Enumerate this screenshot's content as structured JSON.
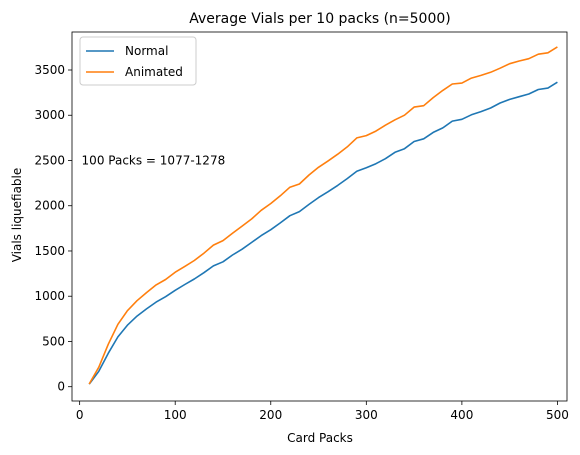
{
  "chart_data": {
    "type": "line",
    "title": "Average Vials per 10 packs (n=5000)",
    "xlabel": "Card Packs",
    "ylabel": "Vials liquefiable",
    "xlim": [
      -8,
      510
    ],
    "ylim": [
      -158,
      3920
    ],
    "xticks": [
      0,
      100,
      200,
      300,
      400,
      500
    ],
    "yticks": [
      0,
      500,
      1000,
      1500,
      2000,
      2500,
      3000,
      3500
    ],
    "grid": false,
    "legend_position": "top-left",
    "annotation": {
      "text": "100 Packs = 1077-1278",
      "x": 2,
      "y": 2500
    },
    "x": [
      10,
      20,
      30,
      40,
      50,
      60,
      70,
      80,
      90,
      100,
      110,
      120,
      130,
      140,
      150,
      160,
      170,
      180,
      190,
      200,
      210,
      220,
      230,
      240,
      250,
      260,
      270,
      280,
      290,
      300,
      310,
      320,
      330,
      340,
      350,
      360,
      370,
      380,
      390,
      400,
      410,
      420,
      430,
      440,
      450,
      460,
      470,
      480,
      490,
      500
    ],
    "series": [
      {
        "name": "Normal",
        "color": "#1f77b4",
        "values": [
          28,
          170,
          370,
          550,
          680,
          780,
          860,
          935,
          995,
          1065,
          1130,
          1190,
          1260,
          1335,
          1380,
          1455,
          1520,
          1595,
          1670,
          1735,
          1810,
          1890,
          1935,
          2015,
          2090,
          2155,
          2225,
          2300,
          2380,
          2420,
          2465,
          2520,
          2590,
          2630,
          2710,
          2740,
          2810,
          2860,
          2935,
          2955,
          3005,
          3040,
          3080,
          3135,
          3175,
          3205,
          3235,
          3285,
          3300,
          3365
        ]
      },
      {
        "name": "Animated",
        "color": "#ff7f0e",
        "values": [
          30,
          215,
          470,
          690,
          840,
          950,
          1040,
          1125,
          1185,
          1265,
          1330,
          1395,
          1475,
          1565,
          1615,
          1695,
          1775,
          1855,
          1950,
          2025,
          2110,
          2205,
          2240,
          2340,
          2425,
          2495,
          2570,
          2650,
          2750,
          2775,
          2825,
          2890,
          2950,
          3000,
          3090,
          3105,
          3195,
          3275,
          3345,
          3355,
          3410,
          3440,
          3475,
          3520,
          3570,
          3600,
          3625,
          3675,
          3690,
          3755
        ]
      }
    ]
  }
}
